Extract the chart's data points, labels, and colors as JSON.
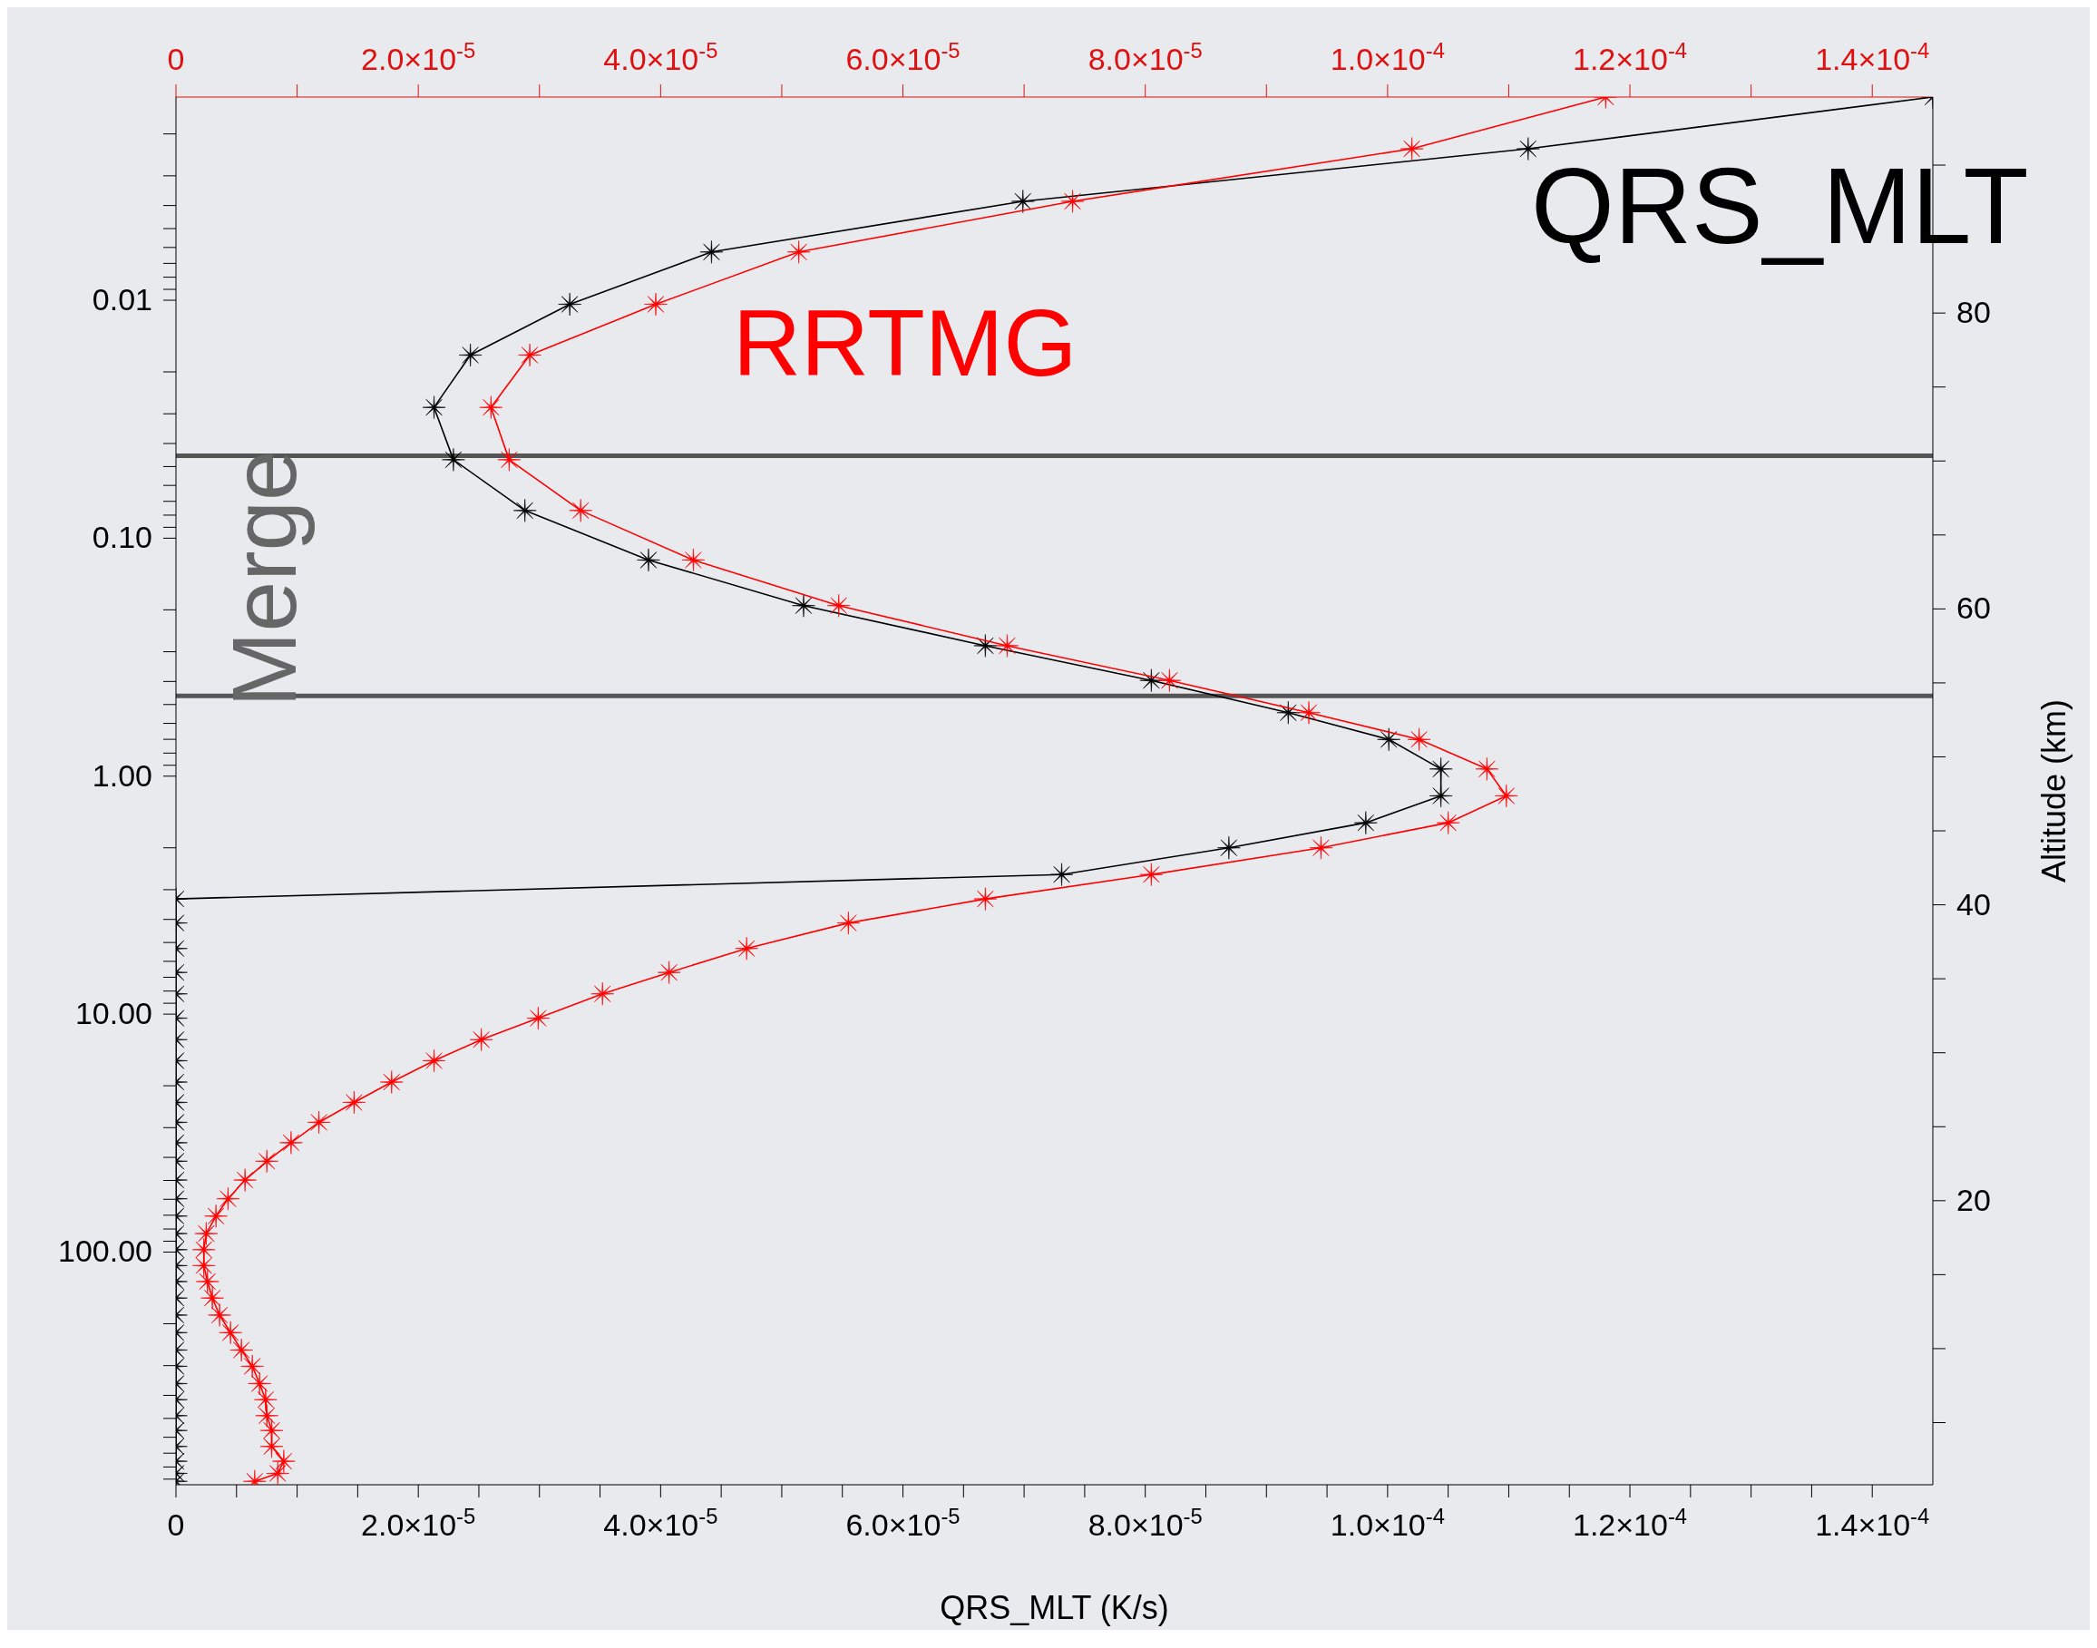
{
  "chart_data": {
    "type": "line",
    "xlabel": "QRS_MLT (K/s)",
    "y2label": "Altitude (km)",
    "annotations": [
      "Merge"
    ],
    "xlim": [
      0,
      0.000145
    ],
    "xticks": [
      0,
      {
        "value": 5e-06,
        "label": null
      },
      {
        "value": 1e-05,
        "label": null
      },
      {
        "value": 1.5e-05,
        "label": null
      },
      {
        "value": 2e-05,
        "label": "2.0×10$^{-5}$"
      },
      {
        "value": 2.5e-05,
        "label": null
      },
      {
        "value": 3e-05,
        "label": null
      },
      {
        "value": 3.5e-05,
        "label": null
      },
      {
        "value": 4e-05,
        "label": "4.0×10$^{-5}$"
      },
      {
        "value": 4.5e-05,
        "label": null
      },
      {
        "value": 5e-05,
        "label": null
      },
      {
        "value": 5.5e-05,
        "label": null
      },
      {
        "value": 6e-05,
        "label": "6.0×10$^{-5}$"
      },
      {
        "value": 6.5e-05,
        "label": null
      },
      {
        "value": 7e-05,
        "label": null
      },
      {
        "value": 7.5e-05,
        "label": null
      },
      {
        "value": 8e-05,
        "label": "8.0×10$^{-5}$"
      },
      {
        "value": 8.5e-05,
        "label": null
      },
      {
        "value": 9e-05,
        "label": null
      },
      {
        "value": 9.5e-05,
        "label": null
      },
      {
        "value": 0.0001,
        "label": "1.0×10$^{-4}$"
      },
      {
        "value": 0.000105,
        "label": null
      },
      {
        "value": 0.00011,
        "label": null
      },
      {
        "value": 0.000115,
        "label": null
      },
      {
        "value": 0.00012,
        "label": "1.2×10$^{-4}$"
      },
      {
        "value": 0.000125,
        "label": null
      },
      {
        "value": 0.00013,
        "label": null
      },
      {
        "value": 0.000135,
        "label": null
      },
      {
        "value": 0.00014,
        "label": "1.4×10$^{-4}$"
      }
    ],
    "x2lim": [
      0,
      0.000145
    ],
    "x2ticks": [
      0,
      {
        "value": 1e-05,
        "label": null
      },
      {
        "value": 2e-05,
        "label": "2.0×10$^{-5}$"
      },
      {
        "value": 3e-05,
        "label": null
      },
      {
        "value": 4e-05,
        "label": "4.0×10$^{-5}$"
      },
      {
        "value": 5e-05,
        "label": null
      },
      {
        "value": 6e-05,
        "label": "6.0×10$^{-5}$"
      },
      {
        "value": 7e-05,
        "label": null
      },
      {
        "value": 8e-05,
        "label": "8.0×10$^{-5}$"
      },
      {
        "value": 9e-05,
        "label": null
      },
      {
        "value": 0.0001,
        "label": "1.0×10$^{-4}$"
      },
      {
        "value": 0.00011,
        "label": null
      },
      {
        "value": 0.00012,
        "label": "1.2×10$^{-4}$"
      },
      {
        "value": 0.00013,
        "label": null
      },
      {
        "value": 0.00014,
        "label": "1.4×10$^{-4}$"
      }
    ],
    "log": "y",
    "ylim": [
      950,
      0.0014
    ],
    "yticks": [
      {
        "value": 0.002,
        "label": null
      },
      {
        "value": 0.003,
        "label": null
      },
      {
        "value": 0.004,
        "label": null
      },
      {
        "value": 0.005,
        "label": null
      },
      {
        "value": 0.006,
        "label": null
      },
      {
        "value": 0.007,
        "label": null
      },
      {
        "value": 0.008,
        "label": null
      },
      {
        "value": 0.009,
        "label": null
      },
      0.01,
      {
        "value": 0.02,
        "label": null
      },
      {
        "value": 0.03,
        "label": null
      },
      {
        "value": 0.04,
        "label": null
      },
      {
        "value": 0.05,
        "label": null
      },
      {
        "value": 0.06,
        "label": null
      },
      {
        "value": 0.07,
        "label": null
      },
      {
        "value": 0.08,
        "label": null
      },
      {
        "value": 0.09,
        "label": null
      },
      {
        "value": 0.1,
        "label": "0.10"
      },
      {
        "value": 0.2,
        "label": null
      },
      {
        "value": 0.3,
        "label": null
      },
      {
        "value": 0.4,
        "label": null
      },
      {
        "value": 0.5,
        "label": null
      },
      {
        "value": 0.6,
        "label": null
      },
      {
        "value": 0.7,
        "label": null
      },
      {
        "value": 0.8,
        "label": null
      },
      {
        "value": 0.9,
        "label": null
      },
      {
        "value": 1,
        "label": "1.00"
      },
      {
        "value": 2,
        "label": null
      },
      {
        "value": 3,
        "label": null
      },
      {
        "value": 4,
        "label": null
      },
      {
        "value": 5,
        "label": null
      },
      {
        "value": 6,
        "label": null
      },
      {
        "value": 7,
        "label": null
      },
      {
        "value": 8,
        "label": null
      },
      {
        "value": 9,
        "label": null
      },
      {
        "value": 10,
        "label": "10.00"
      },
      {
        "value": 20,
        "label": null
      },
      {
        "value": 30,
        "label": null
      },
      {
        "value": 40,
        "label": null
      },
      {
        "value": 50,
        "label": null
      },
      {
        "value": 60,
        "label": null
      },
      {
        "value": 70,
        "label": null
      },
      {
        "value": 80,
        "label": null
      },
      {
        "value": 90,
        "label": null
      },
      {
        "value": 100,
        "label": "100.00"
      },
      {
        "value": 200,
        "label": null
      },
      {
        "value": 300,
        "label": null
      },
      {
        "value": 400,
        "label": null
      },
      {
        "value": 500,
        "label": null
      },
      {
        "value": 600,
        "label": null
      },
      {
        "value": 700,
        "label": null
      },
      {
        "value": 800,
        "label": null
      },
      {
        "value": 900,
        "label": null
      }
    ],
    "y2lim": [
      0.8,
      94.6
    ],
    "y2ticks": [
      {
        "value": 5,
        "label": null
      },
      {
        "value": 10,
        "label": null
      },
      {
        "value": 15,
        "label": null
      },
      20,
      {
        "value": 25,
        "label": null
      },
      {
        "value": 30,
        "label": null
      },
      {
        "value": 35,
        "label": null
      },
      40,
      {
        "value": 45,
        "label": null
      },
      {
        "value": 50,
        "label": null
      },
      {
        "value": 55,
        "label": null
      },
      60,
      {
        "value": 65,
        "label": null
      },
      {
        "value": 70,
        "label": null
      },
      {
        "value": 75,
        "label": null
      },
      80,
      {
        "value": 85,
        "label": null
      },
      {
        "value": 90,
        "label": null
      }
    ],
    "grid": false,
    "legend": "top right",
    "marker": "star",
    "line_style": "solid",
    "ref_lines": [
      {
        "axis": "y",
        "value": 0.045,
        "label": null,
        "color": "#555555"
      },
      {
        "axis": "y",
        "value": 0.46,
        "label": null,
        "color": "#555555"
      }
    ],
    "series": [
      {
        "name": "QRS_MLT",
        "color": "#000000",
        "x": [
          0.000145,
          0.0001116,
          6.99e-05,
          4.42e-05,
          3.25e-05,
          2.43e-05,
          2.13e-05,
          2.29e-05,
          2.88e-05,
          3.9e-05,
          5.18e-05,
          6.68e-05,
          8.05e-05,
          9.18e-05,
          0.0001001,
          0.0001044,
          0.0001044,
          9.82e-05,
          8.69e-05,
          7.31e-05,
          0,
          0,
          0,
          0,
          0,
          0,
          0,
          0,
          0,
          0,
          0,
          0,
          0,
          0,
          0,
          0,
          0,
          0,
          0,
          0,
          0,
          0,
          0,
          0,
          0,
          0,
          0,
          0,
          0,
          0,
          0,
          0,
          0
        ],
        "values": [
          0.0014,
          0.00231,
          0.00384,
          0.00627,
          0.0104,
          0.017,
          0.0282,
          0.0468,
          0.0765,
          0.1235,
          0.192,
          0.283,
          0.396,
          0.541,
          0.701,
          0.933,
          1.21,
          1.57,
          2.0,
          2.59,
          3.28,
          4.14,
          5.3,
          6.68,
          8.22,
          10.4,
          12.8,
          15.7,
          19.3,
          23.5,
          28.5,
          34.7,
          41.5,
          49.8,
          59.7,
          70.6,
          83.6,
          97.7,
          114,
          133,
          156,
          184,
          218,
          258,
          302,
          357,
          417,
          487,
          562,
          656,
          757,
          851,
          919
        ]
      },
      {
        "name": "RRTMG",
        "color": "#ff0000",
        "x": [
          0.000118,
          0.000102,
          7.4e-05,
          5.14e-05,
          3.96e-05,
          2.92e-05,
          2.6e-05,
          2.75e-05,
          3.34e-05,
          4.27e-05,
          5.47e-05,
          6.86e-05,
          8.2e-05,
          9.35e-05,
          0.0001026,
          0.0001082,
          0.0001098,
          0.000105,
          9.45e-05,
          8.05e-05,
          6.68e-05,
          5.55e-05,
          4.71e-05,
          4.07e-05,
          3.52e-05,
          2.99e-05,
          2.52e-05,
          2.13e-05,
          1.78e-05,
          1.47e-05,
          1.18e-05,
          9.5e-06,
          7.5e-06,
          5.7e-06,
          4.3e-06,
          3.3e-06,
          2.5e-06,
          2.3e-06,
          2.3e-06,
          2.6e-06,
          3e-06,
          3.6e-06,
          4.5e-06,
          5.4e-06,
          6.3e-06,
          6.9e-06,
          7.4e-06,
          7.5e-06,
          7.9e-06,
          7.9e-06,
          8.9e-06,
          8.4e-06,
          6.5e-06
        ],
        "values": [
          0.0014,
          0.00231,
          0.00384,
          0.00627,
          0.0104,
          0.017,
          0.0282,
          0.0468,
          0.0765,
          0.1235,
          0.192,
          0.283,
          0.396,
          0.541,
          0.701,
          0.933,
          1.21,
          1.57,
          2.0,
          2.59,
          3.28,
          4.14,
          5.3,
          6.68,
          8.22,
          10.4,
          12.8,
          15.7,
          19.3,
          23.5,
          28.5,
          34.7,
          41.5,
          49.8,
          59.7,
          70.6,
          83.6,
          97.7,
          114,
          133,
          156,
          184,
          218,
          258,
          302,
          357,
          417,
          487,
          562,
          656,
          757,
          851,
          919
        ]
      }
    ]
  }
}
